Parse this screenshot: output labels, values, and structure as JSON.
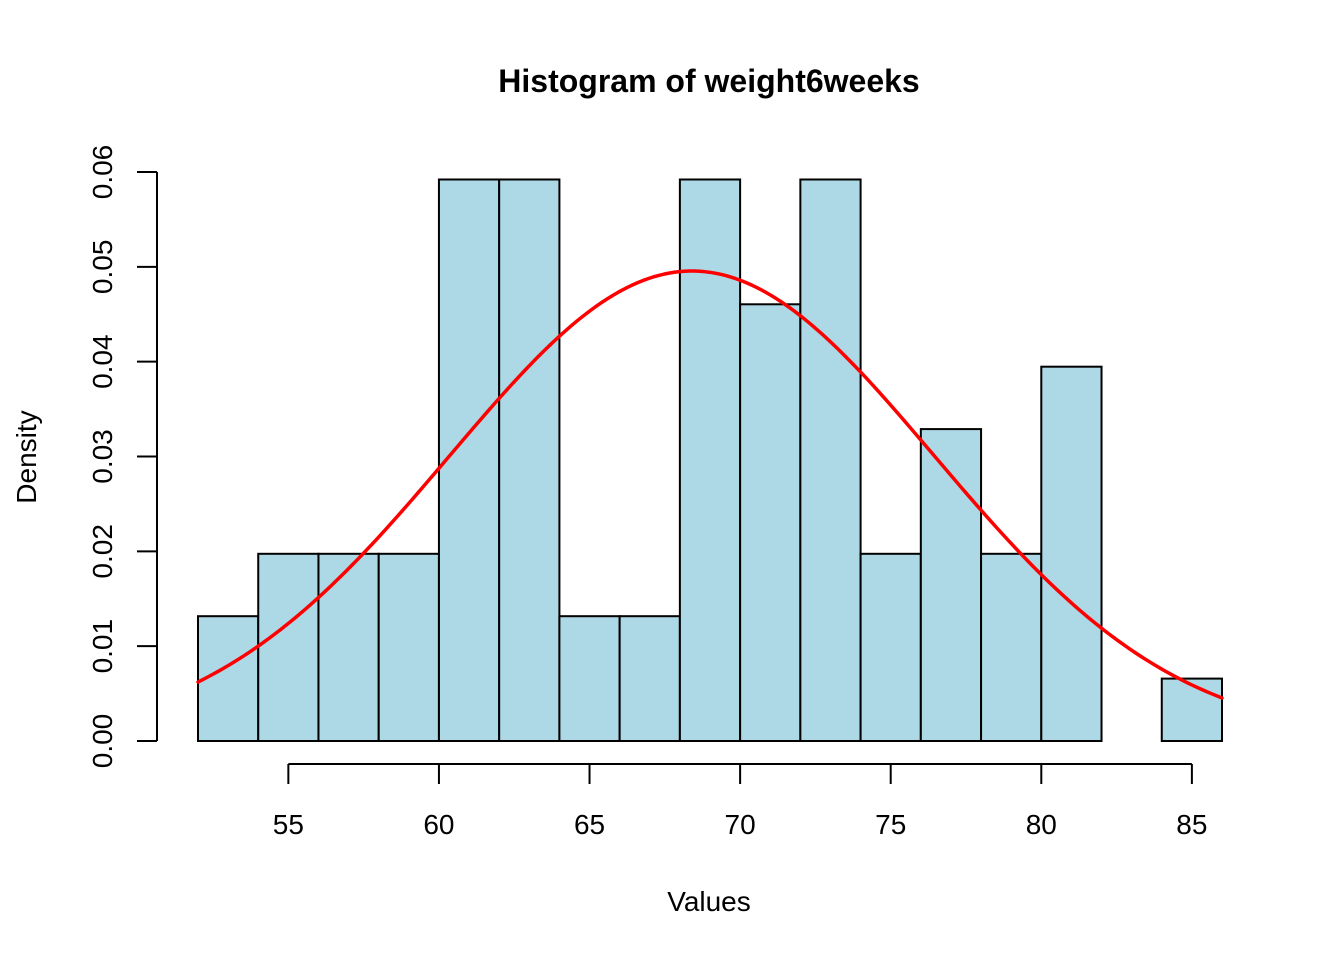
{
  "chart_data": {
    "type": "bar",
    "title": "Histogram of weight6weeks",
    "xlabel": "Values",
    "ylabel": "Density",
    "bin_width": 2,
    "bins": [
      {
        "start": 52,
        "end": 54,
        "density": 0.01316
      },
      {
        "start": 54,
        "end": 56,
        "density": 0.01974
      },
      {
        "start": 56,
        "end": 58,
        "density": 0.01974
      },
      {
        "start": 58,
        "end": 60,
        "density": 0.01974
      },
      {
        "start": 60,
        "end": 62,
        "density": 0.05921
      },
      {
        "start": 62,
        "end": 64,
        "density": 0.05921
      },
      {
        "start": 64,
        "end": 66,
        "density": 0.01316
      },
      {
        "start": 66,
        "end": 68,
        "density": 0.01316
      },
      {
        "start": 68,
        "end": 70,
        "density": 0.05921
      },
      {
        "start": 70,
        "end": 72,
        "density": 0.04605
      },
      {
        "start": 72,
        "end": 74,
        "density": 0.05921
      },
      {
        "start": 74,
        "end": 76,
        "density": 0.01974
      },
      {
        "start": 76,
        "end": 78,
        "density": 0.03289
      },
      {
        "start": 78,
        "end": 80,
        "density": 0.01974
      },
      {
        "start": 80,
        "end": 82,
        "density": 0.03947
      },
      {
        "start": 82,
        "end": 84,
        "density": 0.0
      },
      {
        "start": 84,
        "end": 86,
        "density": 0.00658
      }
    ],
    "density_curve": {
      "mean": 68.4,
      "sd": 8.05,
      "x_from": 52,
      "x_to": 86
    },
    "x_ticks": [
      55,
      60,
      65,
      70,
      75,
      80,
      85
    ],
    "x_tick_labels": [
      "55",
      "60",
      "65",
      "70",
      "75",
      "80",
      "85"
    ],
    "y_ticks": [
      0,
      0.01,
      0.02,
      0.03,
      0.04,
      0.05,
      0.06
    ],
    "y_tick_labels": [
      "0.00",
      "0.01",
      "0.02",
      "0.03",
      "0.04",
      "0.05",
      "0.06"
    ],
    "xlim": [
      52,
      86
    ],
    "ylim": [
      0,
      0.06
    ],
    "grid": false,
    "colors": {
      "bar_fill": "#add8e6",
      "bar_border": "#000000",
      "curve": "#ff0000",
      "axis": "#000000"
    }
  }
}
